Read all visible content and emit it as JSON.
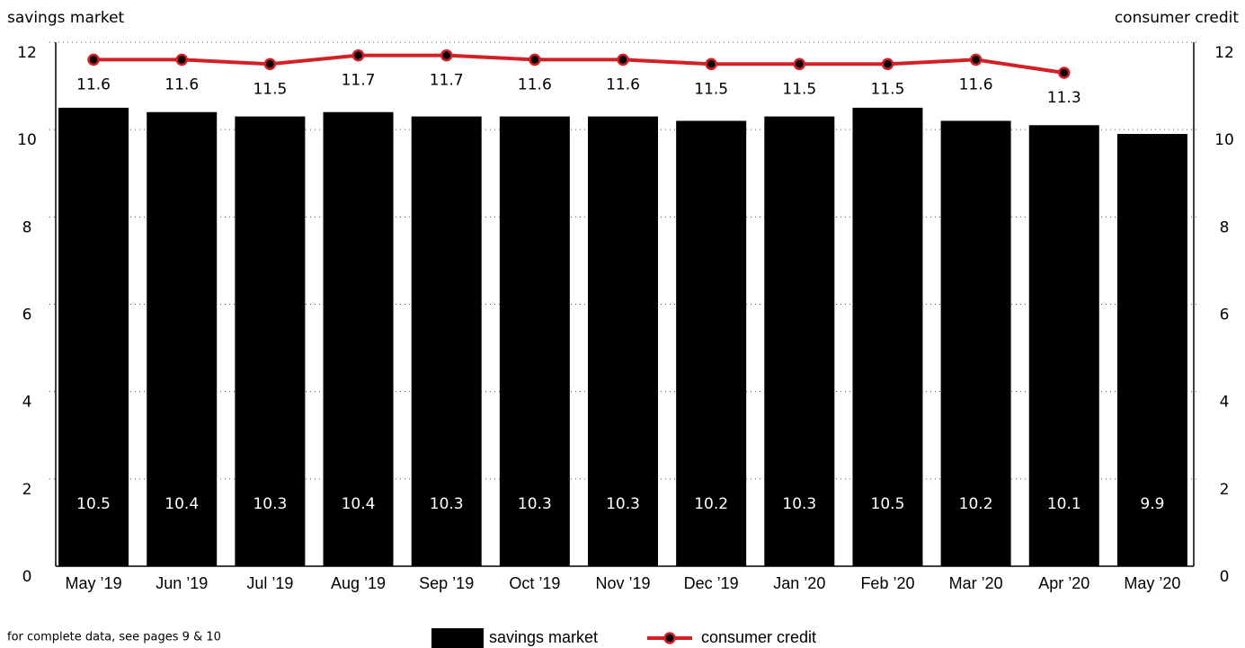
{
  "chart_data": {
    "type": "bar_line",
    "y_label": "savings market",
    "y2_label": "consumer credit",
    "categories": [
      "May ’19",
      "Jun ’19",
      "Jul ’19",
      "Aug ’19",
      "Sep ’19",
      "Oct ’19",
      "Nov ’19",
      "Dec ’19",
      "Jan ’20",
      "Feb ’20",
      "Mar ’20",
      "Apr ’20",
      "May ’20"
    ],
    "series": [
      {
        "name": "savings market",
        "type": "bar",
        "color": "#000000",
        "values": [
          10.5,
          10.4,
          10.3,
          10.4,
          10.3,
          10.3,
          10.3,
          10.2,
          10.3,
          10.5,
          10.2,
          10.1,
          9.9
        ]
      },
      {
        "name": "consumer credit",
        "type": "line",
        "axis": "y2",
        "color": "#d32027",
        "values": [
          11.6,
          11.6,
          11.5,
          11.7,
          11.7,
          11.6,
          11.6,
          11.5,
          11.5,
          11.5,
          11.6,
          11.3,
          null
        ]
      }
    ],
    "ylim": [
      0,
      12
    ],
    "yticks": [
      0,
      2,
      4,
      6,
      8,
      10,
      12
    ],
    "y2lim": [
      0,
      12
    ],
    "y2ticks": [
      0,
      2,
      4,
      6,
      8,
      10,
      12
    ],
    "grid": true,
    "footnote": "for complete data, see pages 9 & 10"
  }
}
